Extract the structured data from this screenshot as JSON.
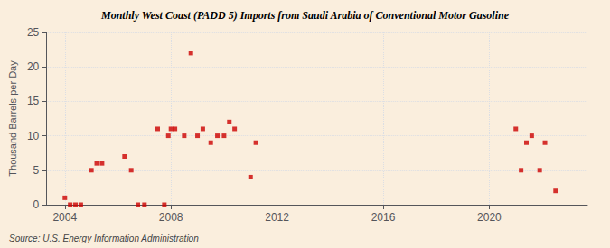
{
  "chart_data": {
    "type": "scatter",
    "title": "Monthly West Coast (PADD 5) Imports from Saudi Arabia of Conventional Motor Gasoline",
    "ylabel": "Thousand Barrels per Day",
    "annotations": [
      "Source: U.S. Energy Information Administration"
    ],
    "x": [
      2004.0,
      2004.2,
      2004.4,
      2004.6,
      2005.0,
      2005.2,
      2005.4,
      2006.25,
      2006.5,
      2006.75,
      2007.0,
      2007.5,
      2007.75,
      2007.9,
      2008.0,
      2008.15,
      2008.5,
      2008.75,
      2009.0,
      2009.2,
      2009.5,
      2009.75,
      2010.0,
      2010.2,
      2010.4,
      2011.0,
      2011.2,
      2021.0,
      2021.2,
      2021.4,
      2021.6,
      2021.9,
      2022.1,
      2022.5
    ],
    "values": [
      1,
      0,
      0,
      0,
      5,
      6,
      6,
      7,
      5,
      0,
      0,
      11,
      0,
      10,
      11,
      11,
      10,
      22,
      10,
      11,
      9,
      10,
      10,
      12,
      11,
      4,
      9,
      11,
      5,
      9,
      10,
      5,
      9,
      2
    ],
    "color": "#cc0000",
    "marker": "square",
    "xlim": [
      2003.3,
      2023.7
    ],
    "ylim": [
      0,
      25
    ],
    "xticks": [
      2004,
      2008,
      2012,
      2016,
      2020
    ],
    "yticks": [
      0,
      5,
      10,
      15,
      20,
      25
    ],
    "grid": true
  }
}
